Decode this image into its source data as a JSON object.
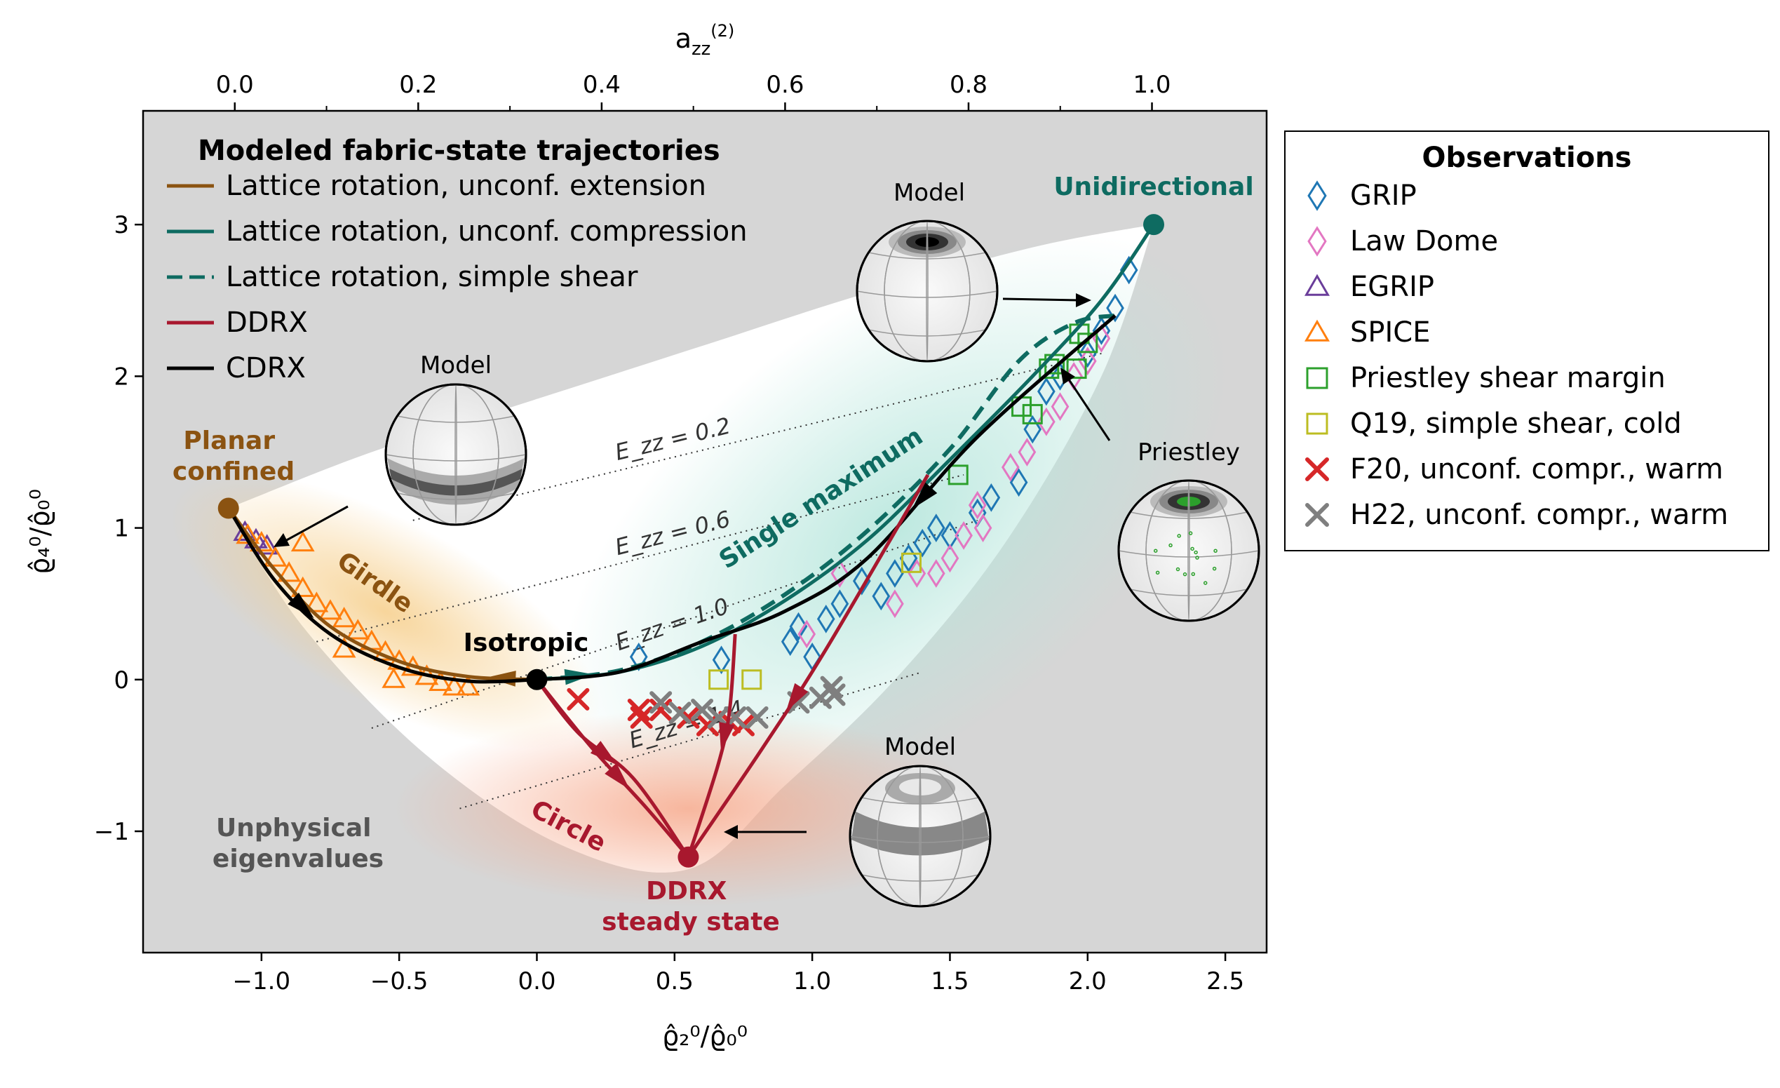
{
  "chart_data": {
    "type": "scatter",
    "xlabel": "ϱ̂₂⁰/ϱ̂₀⁰",
    "ylabel": "ϱ̂₄⁰/ϱ̂₀⁰",
    "top_xlabel": "a_zz^(2)",
    "xlim": [
      -1.43,
      2.65
    ],
    "ylim": [
      -1.8,
      3.75
    ],
    "top_xlim": [
      -0.1,
      1.125
    ],
    "xticks": [
      -1.0,
      -0.5,
      0.0,
      0.5,
      1.0,
      1.5,
      2.0,
      2.5
    ],
    "xtick_labels": [
      "−1.0",
      "−0.5",
      "0.0",
      "0.5",
      "1.0",
      "1.5",
      "2.0",
      "2.5"
    ],
    "yticks": [
      -1,
      0,
      1,
      2,
      3
    ],
    "ytick_labels": [
      "−1",
      "0",
      "1",
      "2",
      "3"
    ],
    "top_xticks": [
      0.0,
      0.2,
      0.4,
      0.6,
      0.8,
      1.0
    ],
    "top_xtick_labels": [
      "0.0",
      "0.2",
      "0.4",
      "0.6",
      "0.8",
      "1.0"
    ],
    "legend_left": {
      "title": "Modeled fabric-state trajectories",
      "placement": "top-left",
      "entries": [
        {
          "label": "Lattice rotation, unconf. extension",
          "color": "#8B5311",
          "style": "solid"
        },
        {
          "label": "Lattice rotation, unconf. compression",
          "color": "#0E6B61",
          "style": "solid"
        },
        {
          "label": "Lattice rotation, simple shear",
          "color": "#0E6B61",
          "style": "dashed"
        },
        {
          "label": "DDRX",
          "color": "#A8182E",
          "style": "solid"
        },
        {
          "label": "CDRX",
          "color": "#000000",
          "style": "solid"
        }
      ]
    },
    "legend_right": {
      "title": "Observations",
      "placement": "outside-right",
      "entries": [
        {
          "label": "GRIP",
          "color": "#1f77b4",
          "marker": "diamond"
        },
        {
          "label": "Law Dome",
          "color": "#e377c2",
          "marker": "diamond"
        },
        {
          "label": "EGRIP",
          "color": "#6a3d9a",
          "marker": "triangle"
        },
        {
          "label": "SPICE",
          "color": "#ff7f0e",
          "marker": "triangle"
        },
        {
          "label": "Priestley shear margin",
          "color": "#2ca02c",
          "marker": "square"
        },
        {
          "label": "Q19, simple shear, cold",
          "color": "#bcbd22",
          "marker": "square"
        },
        {
          "label": "F20, unconf. compr., warm",
          "color": "#d62728",
          "marker": "x"
        },
        {
          "label": "H22, unconf. compr., warm",
          "color": "#7f7f7f",
          "marker": "x"
        }
      ]
    },
    "annotations": {
      "planar": "Planar\nconfined",
      "girdle": "Girdle",
      "isotropic": "Isotropic",
      "single_max": "Single maximum",
      "unidirectional": "Unidirectional",
      "circle": "Circle",
      "ddrx_ss": "DDRX\nsteady state",
      "unphysical": "Unphysical\neigenvalues",
      "model1": "Model",
      "model2": "Model",
      "model3": "Model",
      "priestley": "Priestley",
      "ez": [
        "E_zz = 0.2",
        "E_zz = 0.6",
        "E_zz = 1.0",
        "E_zz = 1.4"
      ]
    },
    "special_points": {
      "planar_confined": [
        -1.12,
        1.13
      ],
      "isotropic": [
        0.0,
        0.0
      ],
      "unidirectional": [
        2.24,
        3.0
      ],
      "ddrx_steady_state": [
        0.55,
        -1.17
      ]
    },
    "trajectories": {
      "extension": [
        [
          0.0,
          0.0
        ],
        [
          -0.25,
          0.02
        ],
        [
          -0.5,
          0.12
        ],
        [
          -0.75,
          0.35
        ],
        [
          -0.95,
          0.72
        ],
        [
          -1.12,
          1.13
        ]
      ],
      "compression": [
        [
          0.0,
          0.0
        ],
        [
          0.3,
          0.05
        ],
        [
          0.6,
          0.22
        ],
        [
          0.9,
          0.52
        ],
        [
          1.2,
          0.92
        ],
        [
          1.5,
          1.45
        ],
        [
          1.8,
          2.0
        ],
        [
          2.05,
          2.5
        ],
        [
          2.24,
          3.0
        ]
      ],
      "simple_shear": [
        [
          0.0,
          0.0
        ],
        [
          0.3,
          0.06
        ],
        [
          0.6,
          0.25
        ],
        [
          0.9,
          0.56
        ],
        [
          1.2,
          0.98
        ],
        [
          1.5,
          1.52
        ],
        [
          1.75,
          2.1
        ],
        [
          1.95,
          2.35
        ],
        [
          2.1,
          2.4
        ]
      ],
      "cdrx_ext": [
        [
          -1.12,
          1.13
        ],
        [
          -0.95,
          0.65
        ],
        [
          -0.75,
          0.3
        ],
        [
          -0.5,
          0.08
        ],
        [
          -0.25,
          -0.01
        ],
        [
          0.0,
          0.0
        ]
      ],
      "cdrx_comp": [
        [
          2.1,
          2.4
        ],
        [
          1.6,
          1.6
        ],
        [
          1.2,
          0.8
        ],
        [
          0.9,
          0.45
        ],
        [
          0.6,
          0.25
        ],
        [
          0.3,
          0.05
        ],
        [
          0.0,
          0.0
        ]
      ],
      "ddrx": [
        [
          [
            0.0,
            0.0
          ],
          [
            0.2,
            -0.45
          ],
          [
            0.4,
            -0.85
          ],
          [
            0.55,
            -1.17
          ]
        ],
        [
          [
            0.0,
            0.0
          ],
          [
            0.15,
            -0.35
          ],
          [
            0.35,
            -0.65
          ],
          [
            0.55,
            -1.17
          ]
        ],
        [
          [
            0.72,
            0.3
          ],
          [
            0.7,
            -0.2
          ],
          [
            0.66,
            -0.55
          ],
          [
            0.55,
            -1.17
          ]
        ],
        [
          [
            1.42,
            1.35
          ],
          [
            1.05,
            0.2
          ],
          [
            0.82,
            -0.45
          ],
          [
            0.55,
            -1.17
          ]
        ]
      ]
    },
    "observations": {
      "GRIP": [
        [
          0.37,
          0.15
        ],
        [
          0.67,
          0.13
        ],
        [
          0.92,
          0.25
        ],
        [
          0.95,
          0.35
        ],
        [
          1.0,
          0.15
        ],
        [
          1.05,
          0.4
        ],
        [
          1.1,
          0.5
        ],
        [
          1.18,
          0.65
        ],
        [
          1.25,
          0.55
        ],
        [
          1.3,
          0.7
        ],
        [
          1.35,
          0.8
        ],
        [
          1.4,
          0.9
        ],
        [
          1.45,
          1.0
        ],
        [
          1.5,
          0.95
        ],
        [
          1.6,
          1.1
        ],
        [
          1.65,
          1.2
        ],
        [
          1.75,
          1.3
        ],
        [
          1.8,
          1.65
        ],
        [
          1.85,
          1.9
        ],
        [
          1.9,
          2.0
        ],
        [
          2.0,
          2.15
        ],
        [
          2.05,
          2.3
        ],
        [
          2.1,
          2.45
        ],
        [
          2.15,
          2.7
        ]
      ],
      "Law Dome": [
        [
          0.98,
          0.3
        ],
        [
          1.1,
          0.7
        ],
        [
          1.3,
          0.5
        ],
        [
          1.38,
          0.7
        ],
        [
          1.45,
          0.7
        ],
        [
          1.5,
          0.8
        ],
        [
          1.55,
          0.95
        ],
        [
          1.6,
          1.15
        ],
        [
          1.62,
          1.0
        ],
        [
          1.72,
          1.4
        ],
        [
          1.78,
          1.5
        ],
        [
          1.85,
          1.7
        ],
        [
          1.9,
          1.8
        ],
        [
          1.95,
          2.0
        ],
        [
          2.0,
          2.1
        ],
        [
          2.05,
          2.25
        ]
      ],
      "EGRIP": [
        [
          -1.06,
          0.97
        ],
        [
          -1.02,
          0.92
        ],
        [
          -0.98,
          0.88
        ]
      ],
      "SPICE": [
        [
          -1.05,
          0.95
        ],
        [
          -1.0,
          0.9
        ],
        [
          -0.95,
          0.8
        ],
        [
          -0.9,
          0.7
        ],
        [
          -0.85,
          0.6
        ],
        [
          -0.8,
          0.5
        ],
        [
          -0.75,
          0.45
        ],
        [
          -0.7,
          0.4
        ],
        [
          -0.65,
          0.32
        ],
        [
          -0.6,
          0.25
        ],
        [
          -0.55,
          0.18
        ],
        [
          -0.5,
          0.12
        ],
        [
          -0.45,
          0.08
        ],
        [
          -0.4,
          0.02
        ],
        [
          -0.35,
          -0.02
        ],
        [
          -0.3,
          -0.05
        ],
        [
          -0.25,
          -0.05
        ],
        [
          -0.85,
          0.9
        ],
        [
          -0.7,
          0.2
        ],
        [
          -0.52,
          0.0
        ]
      ],
      "Priestley shear margin": [
        [
          1.53,
          1.35
        ],
        [
          1.76,
          1.8
        ],
        [
          1.8,
          1.75
        ],
        [
          1.86,
          2.05
        ],
        [
          1.88,
          2.08
        ],
        [
          1.96,
          2.05
        ],
        [
          1.97,
          2.28
        ],
        [
          2.0,
          2.22
        ]
      ],
      "Q19, simple shear, cold": [
        [
          0.66,
          0.0
        ],
        [
          0.78,
          0.0
        ],
        [
          1.36,
          0.77
        ]
      ],
      "F20, unconf. compr., warm": [
        [
          0.15,
          -0.13
        ],
        [
          0.37,
          -0.2
        ],
        [
          0.38,
          -0.25
        ],
        [
          0.45,
          -0.2
        ],
        [
          0.55,
          -0.25
        ],
        [
          0.62,
          -0.3
        ],
        [
          0.7,
          -0.28
        ],
        [
          0.75,
          -0.3
        ]
      ],
      "H22, unconf. compr., warm": [
        [
          0.45,
          -0.15
        ],
        [
          0.52,
          -0.22
        ],
        [
          0.6,
          -0.2
        ],
        [
          0.66,
          -0.25
        ],
        [
          0.72,
          -0.25
        ],
        [
          0.8,
          -0.25
        ],
        [
          0.95,
          -0.15
        ],
        [
          1.03,
          -0.12
        ],
        [
          1.08,
          -0.1
        ],
        [
          1.07,
          -0.05
        ]
      ]
    }
  }
}
